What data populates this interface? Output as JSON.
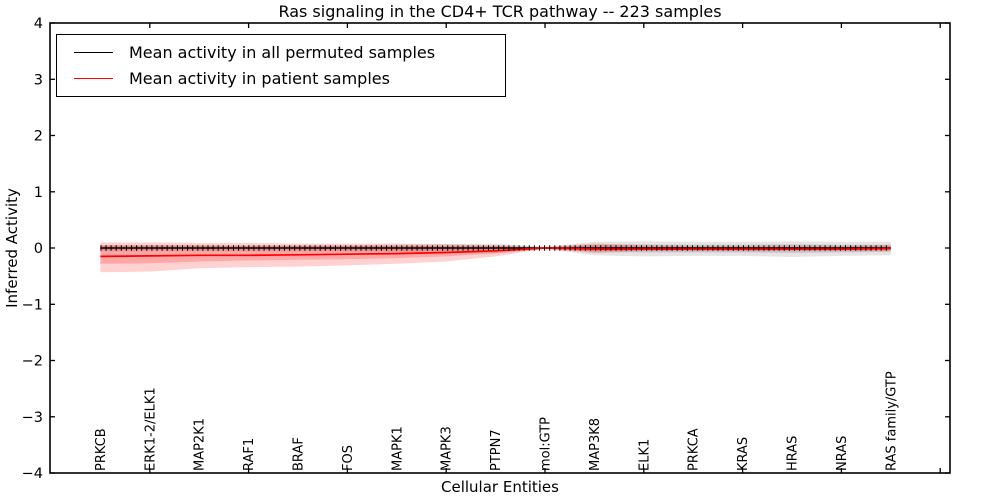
{
  "title": "Ras signaling in the CD4+ TCR pathway -- 223 samples",
  "legend": {
    "items": [
      {
        "label": "Mean activity in all permuted samples",
        "color": "#000000"
      },
      {
        "label": "Mean activity in patient samples",
        "color": "#ff0000"
      }
    ]
  },
  "axes": {
    "x": {
      "label": "Cellular Entities"
    },
    "y": {
      "label": "Inferred Activity",
      "tick_labels": [
        "4",
        "3",
        "2",
        "1",
        "0",
        "−1",
        "−2",
        "−3",
        "−4"
      ],
      "tick_values": [
        4,
        3,
        2,
        1,
        0,
        -1,
        -2,
        -3,
        -4
      ]
    }
  },
  "chart_data": {
    "type": "line",
    "title": "Ras signaling in the CD4+ TCR pathway -- 223 samples",
    "xlabel": "Cellular Entities",
    "ylabel": "Inferred Activity",
    "ylim": [
      -4,
      4
    ],
    "xlim": [
      0,
      18.2
    ],
    "grid": false,
    "legend_position": "upper left",
    "categories": [
      "PRKCB",
      "ERK1-2/ELK1",
      "MAP2K1",
      "RAF1",
      "BRAF",
      "FOS",
      "MAPK1",
      "MAPK3",
      "PTPN7",
      "mol:GTP",
      "MAP3K8",
      "ELK1",
      "PRKCA",
      "KRAS",
      "HRAS",
      "NRAS",
      "RAS family/GTP"
    ],
    "x": [
      1,
      2,
      3,
      4,
      5,
      6,
      7,
      8,
      9,
      10,
      11,
      12,
      13,
      14,
      15,
      16,
      17
    ],
    "xtick_values": [
      2,
      4,
      6,
      8,
      10,
      12,
      14,
      16,
      18
    ],
    "series": [
      {
        "name": "Mean activity in all permuted samples",
        "color": "#000000",
        "style": "solid_with_tick_markers",
        "values": [
          0,
          0,
          0,
          0,
          0,
          0,
          0,
          0,
          0,
          0,
          0,
          0,
          0,
          0,
          0,
          0,
          0
        ]
      },
      {
        "name": "Mean activity in patient samples",
        "color": "#ff0000",
        "style": "solid",
        "values": [
          -0.15,
          -0.14,
          -0.13,
          -0.13,
          -0.12,
          -0.11,
          -0.1,
          -0.08,
          -0.05,
          0.0,
          -0.02,
          -0.02,
          -0.02,
          -0.02,
          -0.02,
          -0.02,
          -0.01
        ]
      }
    ],
    "bands": [
      {
        "name": "permuted-confidence-outer",
        "color": "#000000",
        "opacity": 0.1,
        "upper": [
          0.05,
          0.05,
          0.05,
          0.05,
          0.05,
          0.05,
          0.06,
          0.07,
          0.08,
          0.02,
          0.11,
          0.12,
          0.11,
          0.11,
          0.12,
          0.11,
          0.11
        ],
        "lower": [
          -0.06,
          -0.06,
          -0.06,
          -0.06,
          -0.06,
          -0.06,
          -0.07,
          -0.09,
          -0.1,
          -0.02,
          -0.13,
          -0.15,
          -0.14,
          -0.14,
          -0.16,
          -0.14,
          -0.13
        ]
      },
      {
        "name": "permuted-confidence-inner",
        "color": "#000000",
        "opacity": 0.1,
        "upper": [
          0.03,
          0.03,
          0.03,
          0.03,
          0.03,
          0.03,
          0.03,
          0.04,
          0.04,
          0.01,
          0.06,
          0.07,
          0.06,
          0.06,
          0.07,
          0.06,
          0.06
        ],
        "lower": [
          -0.03,
          -0.03,
          -0.03,
          -0.03,
          -0.03,
          -0.03,
          -0.04,
          -0.05,
          -0.05,
          -0.01,
          -0.07,
          -0.08,
          -0.08,
          -0.08,
          -0.09,
          -0.08,
          -0.07
        ]
      },
      {
        "name": "patient-confidence-outer",
        "color": "#ff0000",
        "opacity": 0.18,
        "upper": [
          0.1,
          0.1,
          0.09,
          0.09,
          0.08,
          0.08,
          0.08,
          0.07,
          0.05,
          0.01,
          0.08,
          0.05,
          0.04,
          0.04,
          0.05,
          0.04,
          0.05
        ],
        "lower": [
          -0.43,
          -0.42,
          -0.36,
          -0.34,
          -0.33,
          -0.31,
          -0.28,
          -0.24,
          -0.15,
          -0.01,
          -0.09,
          -0.06,
          -0.06,
          -0.06,
          -0.06,
          -0.06,
          -0.06
        ]
      },
      {
        "name": "patient-confidence-inner",
        "color": "#ff0000",
        "opacity": 0.2,
        "upper": [
          0.05,
          0.05,
          0.05,
          0.04,
          0.04,
          0.04,
          0.04,
          0.03,
          0.03,
          0.01,
          0.05,
          0.03,
          0.02,
          0.02,
          0.02,
          0.02,
          0.03
        ],
        "lower": [
          -0.28,
          -0.27,
          -0.24,
          -0.22,
          -0.21,
          -0.2,
          -0.18,
          -0.15,
          -0.09,
          -0.01,
          -0.06,
          -0.04,
          -0.04,
          -0.04,
          -0.04,
          -0.04,
          -0.03
        ]
      }
    ]
  }
}
